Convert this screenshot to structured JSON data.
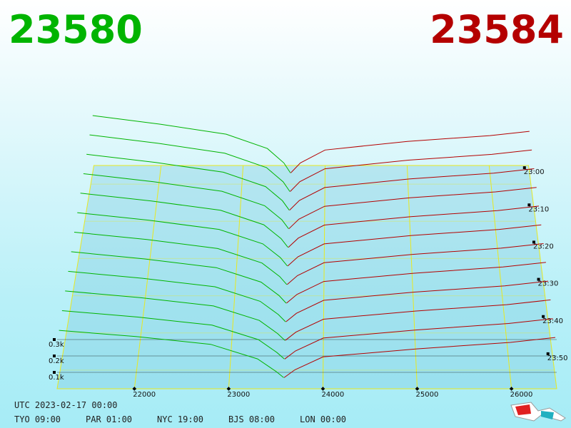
{
  "chart_data": {
    "type": "depth3d",
    "bid_price": "23580",
    "ask_price": "23584",
    "bid_color": "#00b400",
    "ask_color": "#b40000",
    "xlim": [
      21180,
      26480
    ],
    "xticks": [
      22000,
      23000,
      24000,
      25000,
      26000
    ],
    "zlim": [
      1375,
      1435
    ],
    "zticks": [
      {
        "value": 1380,
        "label": "23:00"
      },
      {
        "value": 1390,
        "label": "23:10"
      },
      {
        "value": 1400,
        "label": "23:20"
      },
      {
        "value": 1410,
        "label": "23:30"
      },
      {
        "value": 1420,
        "label": "23:40"
      },
      {
        "value": 1430,
        "label": "23:50"
      }
    ],
    "ylim": [
      0,
      400
    ],
    "yticks": [
      {
        "value": 100,
        "label": "0.1k"
      },
      {
        "value": 200,
        "label": "0.2k"
      },
      {
        "value": 300,
        "label": "0.3k"
      }
    ],
    "bid_x": [
      21180,
      22000,
      22800,
      23300,
      23500,
      23580
    ],
    "ask_x": [
      23584,
      23700,
      24000,
      25000,
      26000,
      26480
    ],
    "snapshots": [
      {
        "z": 1377,
        "bids": [
          400,
          340,
          270,
          170,
          70,
          0
        ],
        "asks": [
          0,
          70,
          160,
          220,
          260,
          290
        ]
      },
      {
        "z": 1382,
        "bids": [
          390,
          332,
          264,
          165,
          67,
          0
        ],
        "asks": [
          0,
          68,
          157,
          216,
          256,
          286
        ]
      },
      {
        "z": 1387,
        "bids": [
          380,
          324,
          258,
          160,
          64,
          0
        ],
        "asks": [
          0,
          66,
          154,
          212,
          252,
          282
        ]
      },
      {
        "z": 1392,
        "bids": [
          370,
          316,
          252,
          155,
          61,
          0
        ],
        "asks": [
          0,
          64,
          151,
          208,
          248,
          278
        ]
      },
      {
        "z": 1397,
        "bids": [
          360,
          308,
          246,
          150,
          58,
          0
        ],
        "asks": [
          0,
          62,
          148,
          204,
          244,
          274
        ]
      },
      {
        "z": 1402,
        "bids": [
          350,
          300,
          240,
          145,
          55,
          0
        ],
        "asks": [
          0,
          60,
          145,
          200,
          240,
          270
        ]
      },
      {
        "z": 1407,
        "bids": [
          340,
          292,
          234,
          140,
          52,
          0
        ],
        "asks": [
          0,
          58,
          142,
          196,
          236,
          266
        ]
      },
      {
        "z": 1412,
        "bids": [
          330,
          284,
          228,
          135,
          49,
          0
        ],
        "asks": [
          0,
          56,
          139,
          192,
          232,
          262
        ]
      },
      {
        "z": 1417,
        "bids": [
          320,
          276,
          222,
          130,
          46,
          0
        ],
        "asks": [
          0,
          54,
          136,
          188,
          228,
          258
        ]
      },
      {
        "z": 1422,
        "bids": [
          310,
          268,
          216,
          125,
          43,
          0
        ],
        "asks": [
          0,
          52,
          133,
          184,
          224,
          254
        ]
      },
      {
        "z": 1427,
        "bids": [
          300,
          260,
          210,
          120,
          40,
          0
        ],
        "asks": [
          0,
          50,
          130,
          180,
          220,
          250
        ]
      },
      {
        "z": 1432,
        "bids": [
          290,
          252,
          204,
          115,
          37,
          0
        ],
        "asks": [
          0,
          48,
          127,
          176,
          216,
          246
        ]
      }
    ],
    "footer": {
      "utc": "UTC 2023-02-17 00:00",
      "zones": [
        "TYO 09:00",
        "PAR 01:00",
        "NYC 19:00",
        "BJS 08:00",
        "LON 00:00"
      ]
    }
  }
}
